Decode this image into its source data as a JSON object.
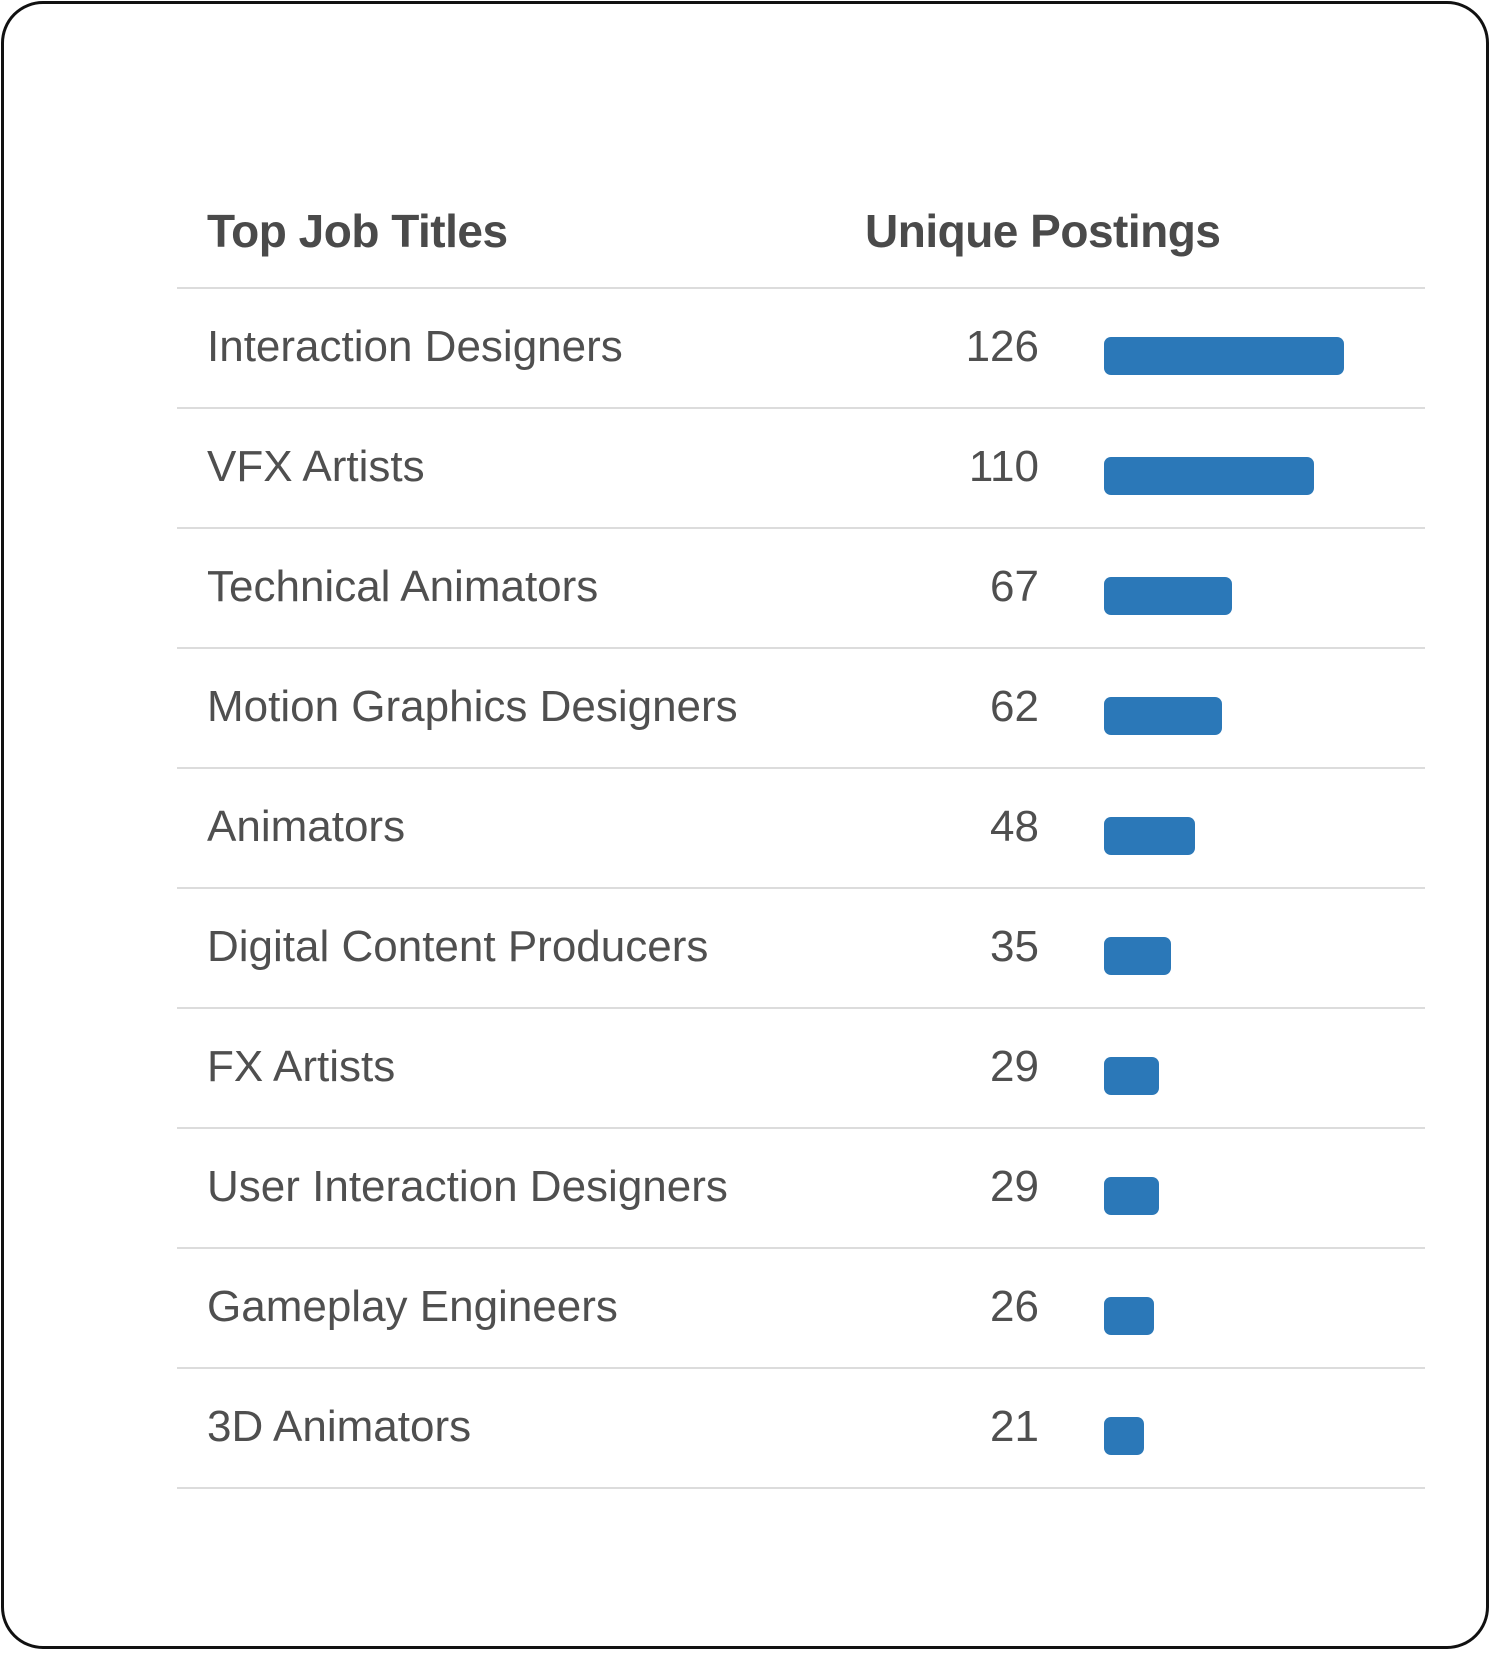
{
  "colors": {
    "bar": "#2b78b8",
    "text": "#4f4f4f",
    "divider": "#dcdcdc"
  },
  "table": {
    "header_title": "Top Job Titles",
    "header_count": "Unique Postings"
  },
  "chart_data": {
    "type": "bar",
    "orientation": "horizontal",
    "categories": [
      "Interaction Designers",
      "VFX Artists",
      "Technical Animators",
      "Motion Graphics Designers",
      "Animators",
      "Digital Content Producers",
      "FX Artists",
      "User Interaction Designers",
      "Gameplay Engineers",
      "3D Animators"
    ],
    "values": [
      126,
      110,
      67,
      62,
      48,
      35,
      29,
      29,
      26,
      21
    ],
    "xlim": [
      0,
      126
    ],
    "grid": false
  }
}
